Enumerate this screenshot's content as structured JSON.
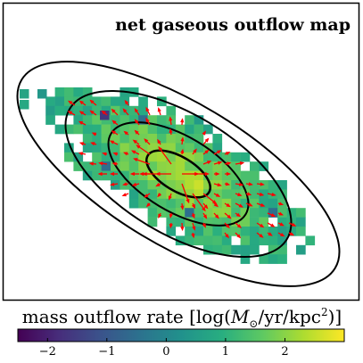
{
  "chart_data": {
    "type": "heatmap",
    "title": "net gaseous outflow map",
    "colorbar": {
      "label_prefix": "mass outflow rate [log(",
      "label_M": "M",
      "label_sun": "⊙",
      "label_mid": "/yr/kpc",
      "label_exp": "2",
      "label_suffix": ")]",
      "vmin": -2.5,
      "vmax": 3.0,
      "colormap": "viridis",
      "ticks": [
        -2,
        -1,
        0,
        1,
        2
      ],
      "tick_labels": [
        "−2",
        "−1",
        "0",
        "1",
        "2"
      ]
    },
    "grid_on": false,
    "arrow_color": "#ff0000",
    "contour_color": "#000000",
    "contour_ellipses": [
      {
        "level": 1,
        "cx": 200,
        "cy": 195,
        "rx": 40,
        "ry": 19,
        "angle_deg": 31
      },
      {
        "level": 2,
        "cx": 200,
        "cy": 195,
        "rx": 88,
        "ry": 42,
        "angle_deg": 31
      },
      {
        "level": 3,
        "cx": 200,
        "cy": 195,
        "rx": 142,
        "ry": 67,
        "angle_deg": 31
      },
      {
        "level": 4,
        "cx": 200,
        "cy": 195,
        "rx": 205,
        "ry": 80,
        "angle_deg": 31
      }
    ],
    "map_center_x": 200,
    "map_center_y": 195,
    "map_peak_value": 2.4,
    "map_inner_floor": 0.9,
    "map_outer_floor": 0.4,
    "map_falloff": 1.7
  }
}
